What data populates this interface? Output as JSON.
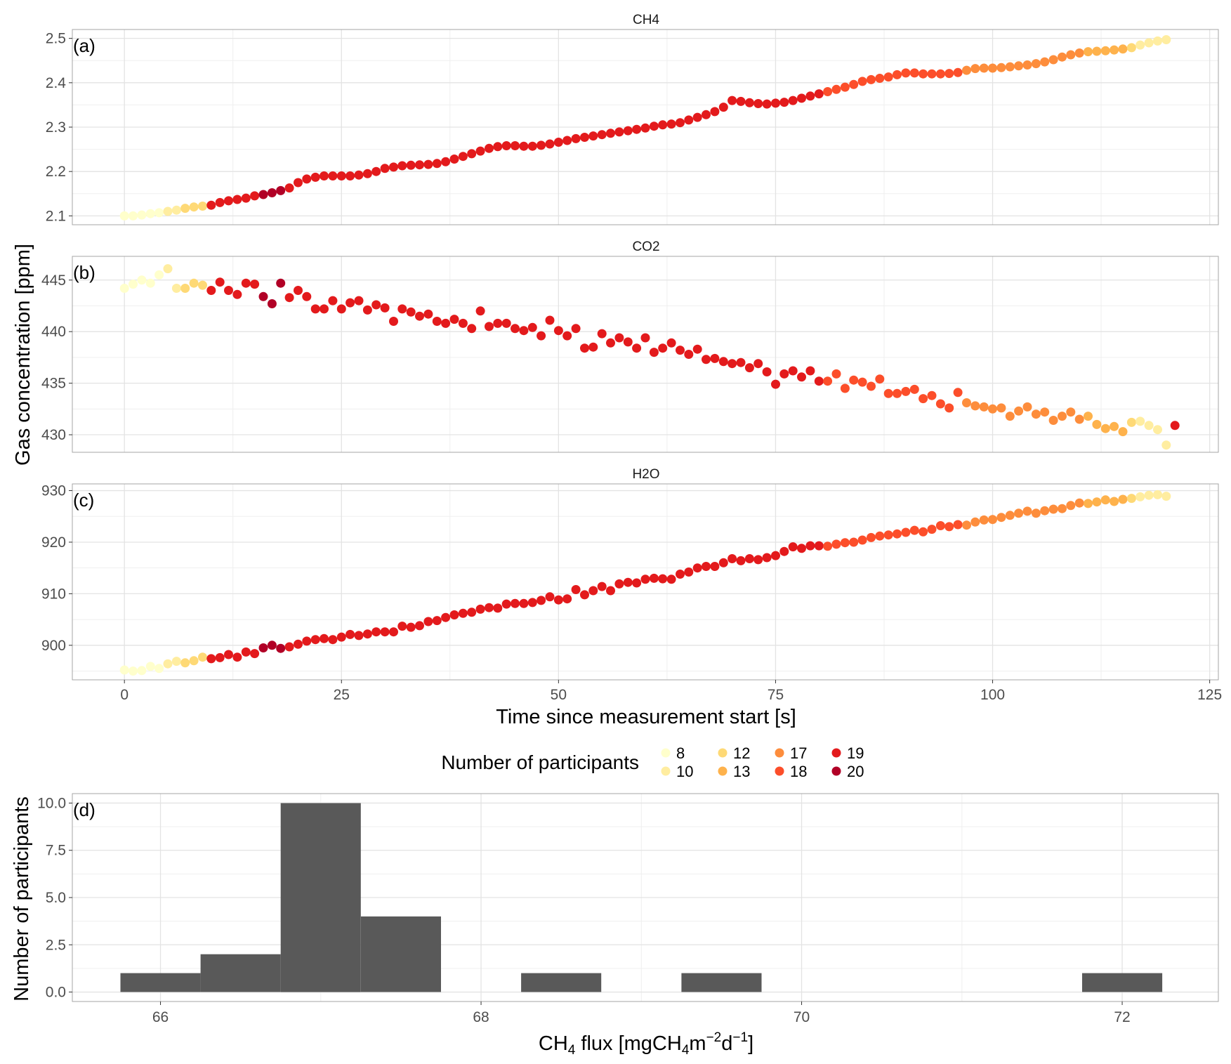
{
  "colors": {
    "8": "#FFFFCC",
    "10": "#FFEDA0",
    "12": "#FED976",
    "13": "#FEB24C",
    "17": "#FD8D3C",
    "18": "#FC4E2A",
    "19": "#E31A1C",
    "20": "#B10026",
    "bar": "#595959",
    "grid": "#e3e3e3",
    "panel_border": "#a6a6a6"
  },
  "legend": {
    "title": "Number of participants",
    "entries": [
      {
        "label": "8",
        "color": "#FFFFCC"
      },
      {
        "label": "10",
        "color": "#FFEDA0"
      },
      {
        "label": "12",
        "color": "#FED976"
      },
      {
        "label": "13",
        "color": "#FEB24C"
      },
      {
        "label": "17",
        "color": "#FD8D3C"
      },
      {
        "label": "18",
        "color": "#FC4E2A"
      },
      {
        "label": "19",
        "color": "#E31A1C"
      },
      {
        "label": "20",
        "color": "#B10026"
      }
    ]
  },
  "chart_data": [
    {
      "type": "scatter",
      "panel_tag": "(a)",
      "title": "CH4",
      "ylabel": "Gas concentration [ppm]",
      "xlabel": "Time since measurement start [s]",
      "xlim": [
        -6,
        126
      ],
      "ylim": [
        2.08,
        2.52
      ],
      "xticks": [
        0,
        25,
        50,
        75,
        100,
        125
      ],
      "yticks": [
        2.1,
        2.2,
        2.3,
        2.4,
        2.5
      ],
      "ytick_labels": [
        "2.1",
        "2.2",
        "2.3",
        "2.4",
        "2.5"
      ],
      "ygrid_minor": [
        2.15,
        2.25,
        2.35,
        2.45
      ],
      "x_start": 0,
      "x_step": 1,
      "y": [
        2.1,
        2.1,
        2.102,
        2.105,
        2.107,
        2.11,
        2.113,
        2.117,
        2.12,
        2.122,
        2.124,
        2.13,
        2.134,
        2.137,
        2.14,
        2.145,
        2.148,
        2.152,
        2.157,
        2.163,
        2.175,
        2.183,
        2.187,
        2.19,
        2.19,
        2.19,
        2.19,
        2.192,
        2.195,
        2.2,
        2.207,
        2.21,
        2.213,
        2.214,
        2.215,
        2.216,
        2.218,
        2.222,
        2.228,
        2.234,
        2.24,
        2.246,
        2.252,
        2.256,
        2.258,
        2.258,
        2.257,
        2.257,
        2.259,
        2.262,
        2.266,
        2.27,
        2.274,
        2.277,
        2.28,
        2.283,
        2.286,
        2.289,
        2.292,
        2.295,
        2.298,
        2.302,
        2.305,
        2.307,
        2.31,
        2.316,
        2.322,
        2.328,
        2.335,
        2.345,
        2.36,
        2.358,
        2.355,
        2.353,
        2.352,
        2.354,
        2.356,
        2.36,
        2.365,
        2.37,
        2.375,
        2.38,
        2.385,
        2.39,
        2.396,
        2.403,
        2.407,
        2.41,
        2.413,
        2.418,
        2.422,
        2.422,
        2.42,
        2.42,
        2.42,
        2.421,
        2.423,
        2.428,
        2.432,
        2.433,
        2.433,
        2.434,
        2.436,
        2.438,
        2.44,
        2.443,
        2.447,
        2.452,
        2.458,
        2.463,
        2.467,
        2.47,
        2.471,
        2.472,
        2.474,
        2.476,
        2.479,
        2.485,
        2.49,
        2.494,
        2.497
      ],
      "n_participants": [
        8,
        8,
        8,
        8,
        8,
        10,
        10,
        12,
        12,
        12,
        19,
        19,
        19,
        19,
        19,
        19,
        20,
        20,
        20,
        19,
        19,
        19,
        19,
        19,
        19,
        19,
        19,
        19,
        19,
        19,
        19,
        19,
        19,
        19,
        19,
        19,
        19,
        19,
        19,
        19,
        19,
        19,
        19,
        19,
        19,
        19,
        19,
        19,
        19,
        19,
        19,
        19,
        19,
        19,
        19,
        19,
        19,
        19,
        19,
        19,
        19,
        19,
        19,
        19,
        19,
        19,
        19,
        19,
        19,
        19,
        19,
        19,
        19,
        19,
        19,
        19,
        19,
        19,
        19,
        19,
        19,
        18,
        18,
        18,
        18,
        18,
        18,
        18,
        18,
        18,
        18,
        18,
        18,
        18,
        18,
        18,
        18,
        17,
        17,
        17,
        17,
        17,
        17,
        17,
        17,
        17,
        17,
        17,
        17,
        17,
        17,
        13,
        13,
        13,
        13,
        13,
        12,
        10,
        10,
        10,
        10
      ]
    },
    {
      "type": "scatter",
      "panel_tag": "(b)",
      "title": "CO2",
      "xlim": [
        -6,
        126
      ],
      "ylim": [
        428.3,
        447.3
      ],
      "xticks": [
        0,
        25,
        50,
        75,
        100,
        125
      ],
      "yticks": [
        430,
        435,
        440,
        445
      ],
      "ytick_labels": [
        "430",
        "435",
        "440",
        "445"
      ],
      "ygrid_minor": [
        432.5,
        437.5,
        442.5
      ],
      "x_start": 0,
      "x_step": 1,
      "y": [
        444.2,
        444.6,
        445.0,
        444.7,
        445.5,
        446.1,
        444.2,
        444.2,
        444.7,
        444.5,
        444.0,
        444.8,
        444.0,
        443.6,
        444.7,
        444.6,
        443.4,
        442.7,
        444.7,
        443.3,
        444.0,
        443.4,
        442.2,
        442.2,
        443.0,
        442.2,
        442.8,
        443.0,
        442.1,
        442.6,
        442.3,
        441.0,
        442.2,
        441.9,
        441.5,
        441.7,
        441.0,
        440.8,
        441.2,
        440.8,
        440.3,
        442.0,
        440.5,
        440.8,
        440.8,
        440.3,
        440.1,
        440.4,
        439.6,
        441.1,
        440.1,
        439.6,
        440.3,
        438.4,
        438.5,
        439.8,
        438.9,
        439.4,
        439.0,
        438.4,
        439.4,
        438.0,
        438.4,
        438.9,
        438.2,
        437.8,
        438.3,
        437.3,
        437.4,
        437.1,
        436.9,
        437.0,
        436.5,
        436.9,
        436.1,
        434.9,
        435.9,
        436.2,
        435.6,
        436.2,
        435.2,
        435.2,
        435.9,
        434.5,
        435.3,
        435.1,
        434.7,
        435.4,
        434.0,
        434.0,
        434.2,
        434.4,
        433.5,
        433.8,
        433.0,
        432.6,
        434.1,
        433.1,
        432.8,
        432.7,
        432.5,
        432.6,
        431.8,
        432.3,
        432.7,
        432.0,
        432.2,
        431.4,
        431.8,
        432.2,
        431.5,
        431.8,
        431.0,
        430.6,
        430.8,
        430.3,
        431.2,
        431.3,
        430.9,
        430.5,
        429.0,
        430.9
      ],
      "n_participants": [
        8,
        8,
        8,
        8,
        8,
        10,
        10,
        12,
        12,
        12,
        19,
        19,
        19,
        19,
        19,
        19,
        20,
        20,
        20,
        19,
        19,
        19,
        19,
        19,
        19,
        19,
        19,
        19,
        19,
        19,
        19,
        19,
        19,
        19,
        19,
        19,
        19,
        19,
        19,
        19,
        19,
        19,
        19,
        19,
        19,
        19,
        19,
        19,
        19,
        19,
        19,
        19,
        19,
        19,
        19,
        19,
        19,
        19,
        19,
        19,
        19,
        19,
        19,
        19,
        19,
        19,
        19,
        19,
        19,
        19,
        19,
        19,
        19,
        19,
        19,
        19,
        19,
        19,
        19,
        19,
        19,
        18,
        18,
        18,
        18,
        18,
        18,
        18,
        18,
        18,
        18,
        18,
        18,
        18,
        18,
        18,
        18,
        17,
        17,
        17,
        17,
        17,
        17,
        17,
        17,
        17,
        17,
        17,
        17,
        17,
        17,
        13,
        13,
        13,
        13,
        13,
        12,
        10,
        10,
        10,
        10
      ]
    },
    {
      "type": "scatter",
      "panel_tag": "(c)",
      "title": "H2O",
      "xlim": [
        -6,
        126
      ],
      "ylim": [
        893.3,
        931.3
      ],
      "xticks": [
        0,
        25,
        50,
        75,
        100,
        125
      ],
      "xtick_labels": [
        "0",
        "25",
        "50",
        "75",
        "100",
        "125"
      ],
      "yticks": [
        900,
        910,
        920,
        930
      ],
      "ytick_labels": [
        "900",
        "910",
        "920",
        "930"
      ],
      "ygrid_minor": [
        895,
        905,
        915,
        925
      ],
      "x_start": 0,
      "x_step": 1,
      "y": [
        895.2,
        895.0,
        895.1,
        895.9,
        895.5,
        896.4,
        896.9,
        896.6,
        897.0,
        897.7,
        897.4,
        897.6,
        898.2,
        897.7,
        898.7,
        898.4,
        899.5,
        900.0,
        899.4,
        899.7,
        900.2,
        900.8,
        901.1,
        901.3,
        901.1,
        901.6,
        902.1,
        901.9,
        902.2,
        902.6,
        902.6,
        902.6,
        903.7,
        903.5,
        903.8,
        904.6,
        904.8,
        905.4,
        905.9,
        906.2,
        906.4,
        907.0,
        907.3,
        907.2,
        908.0,
        908.1,
        908.1,
        908.3,
        908.7,
        909.4,
        908.8,
        909.0,
        910.8,
        909.8,
        910.6,
        911.4,
        910.6,
        911.9,
        912.2,
        912.1,
        912.8,
        913.0,
        912.9,
        912.8,
        913.8,
        914.2,
        915.0,
        915.3,
        915.3,
        916.0,
        916.8,
        916.4,
        916.8,
        916.6,
        917.0,
        917.4,
        918.2,
        919.1,
        918.8,
        919.3,
        919.3,
        919.2,
        919.6,
        919.9,
        920.0,
        920.4,
        920.9,
        921.2,
        921.4,
        921.6,
        921.9,
        922.3,
        922.0,
        922.5,
        923.2,
        923.0,
        923.4,
        923.3,
        923.9,
        924.3,
        924.4,
        924.8,
        925.2,
        925.6,
        926.0,
        925.6,
        926.1,
        926.4,
        926.5,
        927.1,
        927.6,
        927.5,
        927.8,
        928.2,
        927.9,
        928.3,
        928.5,
        928.8,
        929.1,
        929.2,
        928.9
      ],
      "n_participants": [
        8,
        8,
        8,
        8,
        8,
        10,
        10,
        12,
        12,
        12,
        19,
        19,
        19,
        19,
        19,
        19,
        20,
        20,
        20,
        19,
        19,
        19,
        19,
        19,
        19,
        19,
        19,
        19,
        19,
        19,
        19,
        19,
        19,
        19,
        19,
        19,
        19,
        19,
        19,
        19,
        19,
        19,
        19,
        19,
        19,
        19,
        19,
        19,
        19,
        19,
        19,
        19,
        19,
        19,
        19,
        19,
        19,
        19,
        19,
        19,
        19,
        19,
        19,
        19,
        19,
        19,
        19,
        19,
        19,
        19,
        19,
        19,
        19,
        19,
        19,
        19,
        19,
        19,
        19,
        19,
        19,
        18,
        18,
        18,
        18,
        18,
        18,
        18,
        18,
        18,
        18,
        18,
        18,
        18,
        18,
        18,
        18,
        17,
        17,
        17,
        17,
        17,
        17,
        17,
        17,
        17,
        17,
        17,
        17,
        17,
        17,
        13,
        13,
        13,
        13,
        13,
        12,
        10,
        10,
        10,
        10
      ]
    },
    {
      "type": "bar",
      "panel_tag": "(d)",
      "ylabel": "Number of participants",
      "xlabel_main": "CH",
      "xlabel_sub": "4",
      "xlabel_rest": " flux [mgCH",
      "xlabel_sub2": "4",
      "xlabel_m": "m",
      "xlabel_sup1": "−2",
      "xlabel_d": "d",
      "xlabel_sup2": "−1",
      "xlabel_end": "]",
      "xlim": [
        65.45,
        72.6
      ],
      "ylim": [
        -0.5,
        10.5
      ],
      "xticks": [
        66,
        68,
        70,
        72
      ],
      "xtick_labels": [
        "66",
        "68",
        "70",
        "72"
      ],
      "xgrid_minor": [
        67,
        69,
        71
      ],
      "yticks": [
        0.0,
        2.5,
        5.0,
        7.5,
        10.0
      ],
      "ytick_labels": [
        "0.0",
        "2.5",
        "5.0",
        "7.5",
        "10.0"
      ],
      "ygrid_minor": [
        1.25,
        3.75,
        6.25,
        8.75
      ],
      "bin_width": 0.5,
      "bin_starts": [
        65.75,
        66.25,
        66.75,
        67.25,
        68.25,
        69.25,
        71.75
      ],
      "counts": [
        1,
        2,
        10,
        4,
        1,
        1,
        1
      ]
    }
  ]
}
